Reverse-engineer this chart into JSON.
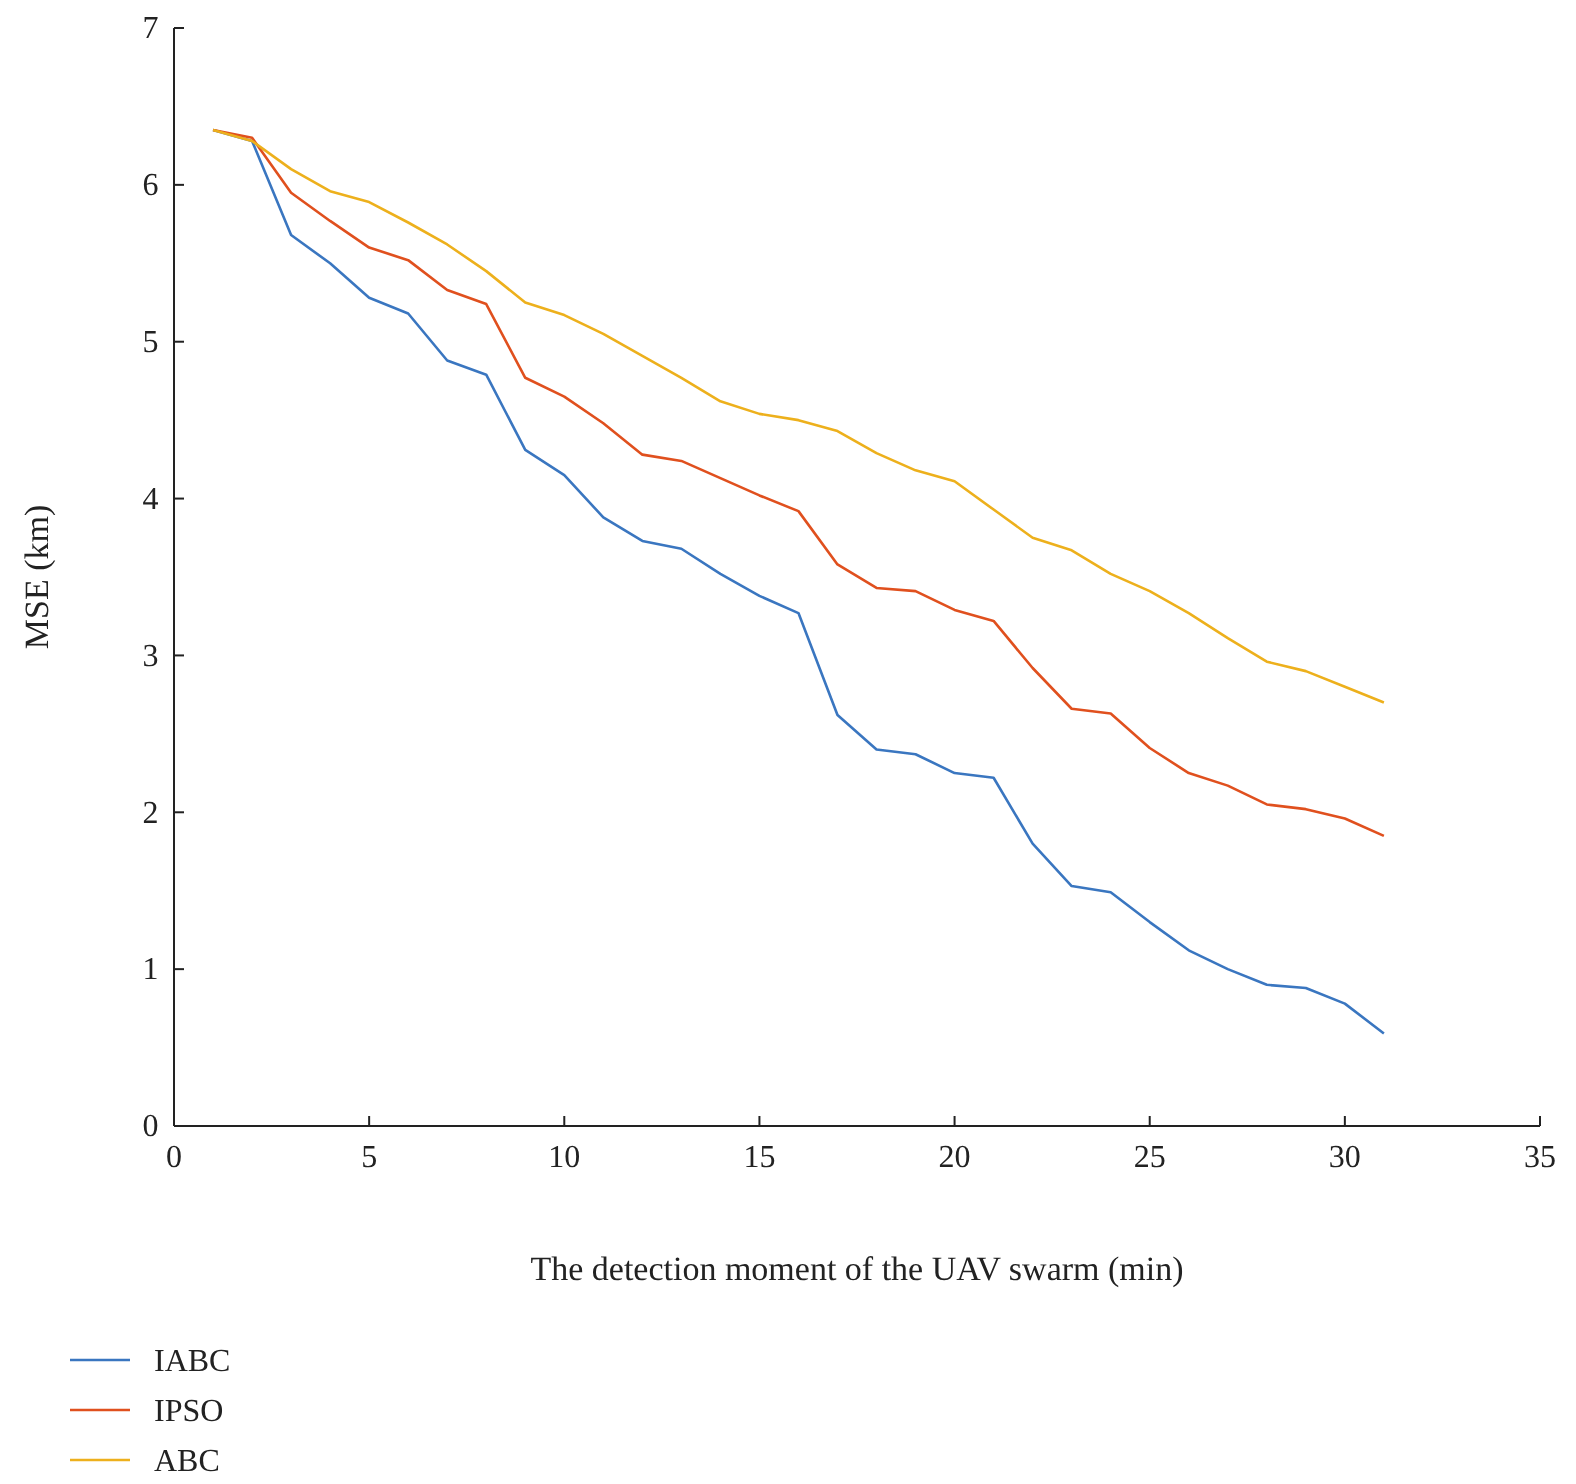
{
  "chart_data": {
    "type": "line",
    "xlabel": "The detection moment of the UAV swarm (min)",
    "ylabel": "MSE (km)",
    "x": [
      1,
      2,
      3,
      4,
      5,
      6,
      7,
      8,
      9,
      10,
      11,
      12,
      13,
      14,
      15,
      16,
      17,
      18,
      19,
      20,
      21,
      22,
      23,
      24,
      25,
      26,
      27,
      28,
      29,
      30,
      31
    ],
    "series": [
      {
        "name": "IABC",
        "color": "#3a76c0",
        "values": [
          6.35,
          6.28,
          5.68,
          5.5,
          5.28,
          5.18,
          4.88,
          4.79,
          4.31,
          4.15,
          3.88,
          3.73,
          3.68,
          3.52,
          3.38,
          3.27,
          2.62,
          2.4,
          2.37,
          2.25,
          2.22,
          1.8,
          1.53,
          1.49,
          1.3,
          1.12,
          1.0,
          0.9,
          0.88,
          0.78,
          0.59
        ]
      },
      {
        "name": "IPSO",
        "color": "#e0501e",
        "values": [
          6.35,
          6.3,
          5.95,
          5.77,
          5.6,
          5.52,
          5.33,
          5.24,
          4.77,
          4.65,
          4.48,
          4.28,
          4.24,
          4.13,
          4.02,
          3.92,
          3.58,
          3.43,
          3.41,
          3.29,
          3.22,
          2.92,
          2.66,
          2.63,
          2.41,
          2.25,
          2.17,
          2.05,
          2.02,
          1.96,
          1.85
        ]
      },
      {
        "name": "ABC",
        "color": "#edb01c",
        "values": [
          6.35,
          6.28,
          6.1,
          5.96,
          5.89,
          5.76,
          5.62,
          5.45,
          5.25,
          5.17,
          5.05,
          4.91,
          4.77,
          4.62,
          4.54,
          4.5,
          4.43,
          4.29,
          4.18,
          4.11,
          3.93,
          3.75,
          3.67,
          3.52,
          3.41,
          3.27,
          3.11,
          2.96,
          2.9,
          2.8,
          2.7
        ]
      }
    ],
    "xlim": [
      0,
      35
    ],
    "xticks": [
      0,
      5,
      10,
      15,
      20,
      25,
      30,
      35
    ],
    "ylim": [
      0,
      7
    ],
    "yticks": [
      0,
      1,
      2,
      3,
      4,
      5,
      6,
      7
    ],
    "grid": false,
    "legend": "bottom left",
    "marker": "none",
    "line_style": "solid"
  }
}
